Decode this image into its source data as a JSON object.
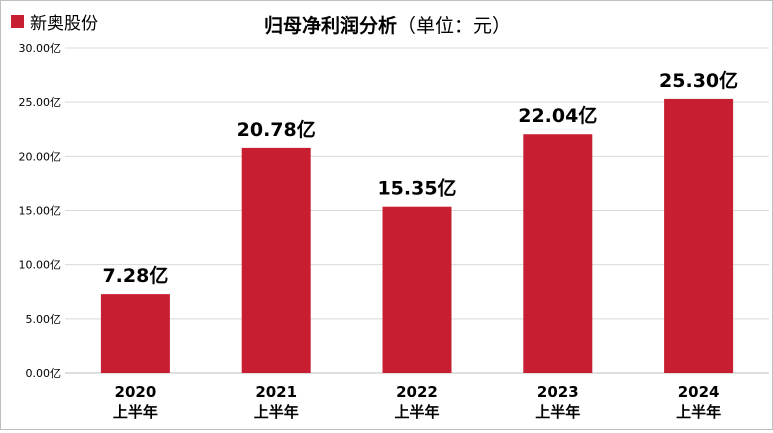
{
  "legend": {
    "label": "新奥股份",
    "color": "#c81e32"
  },
  "chart_title_main": "归母净利润分析",
  "chart_title_sub": "（单位：元）",
  "chart_data": {
    "type": "bar",
    "title": "归母净利润分析（单位：元）",
    "categories": [
      {
        "year": "2020",
        "half": "上半年"
      },
      {
        "year": "2021",
        "half": "上半年"
      },
      {
        "year": "2022",
        "half": "上半年"
      },
      {
        "year": "2023",
        "half": "上半年"
      },
      {
        "year": "2024",
        "half": "上半年"
      }
    ],
    "series": [
      {
        "name": "新奥股份",
        "values": [
          7.28,
          20.78,
          15.35,
          22.04,
          25.3
        ],
        "color": "#c81e32"
      }
    ],
    "data_labels": [
      "7.28亿",
      "20.78亿",
      "15.35亿",
      "22.04亿",
      "25.30亿"
    ],
    "ylim": [
      0,
      30
    ],
    "yticks": [
      0,
      5,
      10,
      15,
      20,
      25,
      30
    ],
    "ytick_labels": [
      "0.00亿",
      "5.00亿",
      "10.00亿",
      "15.00亿",
      "20.00亿",
      "25.00亿",
      "30.00亿"
    ],
    "grid": true,
    "legend_position": "top-left"
  }
}
